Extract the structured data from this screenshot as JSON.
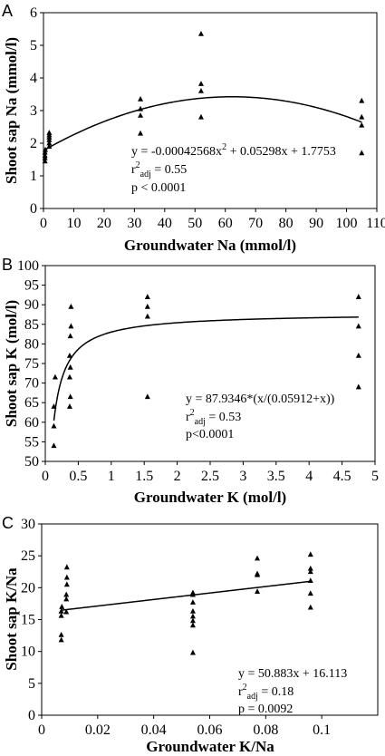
{
  "chart_data": [
    {
      "panel": "A",
      "type": "scatter",
      "xlabel": "Groundwater Na (mmol/l)",
      "ylabel": "Shoot sap Na (mmol/l)",
      "xlim": [
        0,
        110
      ],
      "ylim": [
        0,
        6
      ],
      "xticks": [
        0,
        10,
        20,
        30,
        40,
        50,
        60,
        70,
        80,
        90,
        100,
        110
      ],
      "yticks": [
        0,
        1,
        2,
        3,
        4,
        5,
        6
      ],
      "points": [
        [
          0.5,
          1.45
        ],
        [
          0.5,
          1.55
        ],
        [
          0.5,
          1.62
        ],
        [
          0.5,
          1.72
        ],
        [
          0.6,
          1.8
        ],
        [
          1.9,
          1.9
        ],
        [
          1.9,
          2.0
        ],
        [
          1.9,
          2.1
        ],
        [
          1.9,
          2.18
        ],
        [
          1.9,
          2.25
        ],
        [
          1.9,
          2.32
        ],
        [
          32,
          2.3
        ],
        [
          32,
          2.85
        ],
        [
          32,
          3.05
        ],
        [
          32,
          3.35
        ],
        [
          52,
          2.8
        ],
        [
          52,
          3.6
        ],
        [
          52,
          3.82
        ],
        [
          52,
          5.35
        ],
        [
          105,
          1.7
        ],
        [
          105,
          2.55
        ],
        [
          105,
          2.8
        ],
        [
          105,
          3.3
        ]
      ],
      "fit": {
        "model": "quadratic",
        "a": -0.00042568,
        "b": 0.05298,
        "c": 1.7753,
        "xrange": [
          0.5,
          105
        ]
      },
      "annotation": {
        "equation": "y = -0.00042568x",
        "equation_sup": "2",
        "equation_rest": " + 0.05298x + 1.7753",
        "r2_main": "r",
        "r2_sup": "2",
        "r2_sub": "adj",
        "r2_value": " = 0.55",
        "p": "p < 0.0001"
      }
    },
    {
      "panel": "B",
      "type": "scatter",
      "xlabel": "Groundwater K (mol/l)",
      "ylabel": "Shoot sap K (mol/l)",
      "xlim": [
        0,
        5
      ],
      "ylim": [
        50,
        100
      ],
      "xticks": [
        0,
        0.5,
        1,
        1.5,
        2,
        2.5,
        3,
        3.5,
        4,
        4.5,
        5
      ],
      "yticks": [
        50,
        55,
        60,
        65,
        70,
        75,
        80,
        85,
        90,
        95,
        100
      ],
      "points": [
        [
          0.13,
          54
        ],
        [
          0.13,
          59
        ],
        [
          0.13,
          64
        ],
        [
          0.15,
          71.5
        ],
        [
          0.37,
          64
        ],
        [
          0.38,
          66.5
        ],
        [
          0.37,
          71.5
        ],
        [
          0.38,
          74
        ],
        [
          0.37,
          77
        ],
        [
          0.38,
          82
        ],
        [
          0.39,
          84.5
        ],
        [
          0.39,
          89.5
        ],
        [
          1.55,
          66.5
        ],
        [
          1.55,
          87
        ],
        [
          1.55,
          89.5
        ],
        [
          1.55,
          92
        ],
        [
          4.75,
          69
        ],
        [
          4.75,
          77
        ],
        [
          4.75,
          84.5
        ],
        [
          4.75,
          92
        ]
      ],
      "fit": {
        "model": "michaelis-menten",
        "vmax": 87.9346,
        "k": 0.05912,
        "xrange": [
          0.13,
          4.75
        ]
      },
      "annotation": {
        "equation": "y = 87.9346*(x/(0.05912+x))",
        "r2_main": "r",
        "r2_sup": "2",
        "r2_sub": "adj",
        "r2_value": " = 0.53",
        "p": "p<0.0001"
      }
    },
    {
      "panel": "C",
      "type": "scatter",
      "xlabel": "Groundwater K/Na",
      "ylabel": "Shoot sap K/Na",
      "xlim": [
        0,
        0.12
      ],
      "ylim": [
        0,
        30
      ],
      "xticks": [
        0,
        0.02,
        0.04,
        0.06,
        0.08,
        0.1
      ],
      "xtick_labels": [
        "0",
        "0.02",
        "0.04",
        "0.06",
        "0.08",
        "0.1"
      ],
      "yticks": [
        0,
        5,
        10,
        15,
        20,
        25,
        30
      ],
      "points": [
        [
          0.007,
          11.8
        ],
        [
          0.007,
          12.6
        ],
        [
          0.007,
          15.6
        ],
        [
          0.007,
          16.3
        ],
        [
          0.0072,
          17
        ],
        [
          0.0088,
          16.2
        ],
        [
          0.0088,
          18.2
        ],
        [
          0.0088,
          18.9
        ],
        [
          0.009,
          20.5
        ],
        [
          0.009,
          21.6
        ],
        [
          0.009,
          23.2
        ],
        [
          0.054,
          9.8
        ],
        [
          0.054,
          14.1
        ],
        [
          0.054,
          14.8
        ],
        [
          0.054,
          15.5
        ],
        [
          0.054,
          16.3
        ],
        [
          0.054,
          17.7
        ],
        [
          0.054,
          18.9
        ],
        [
          0.054,
          19.2
        ],
        [
          0.077,
          19.4
        ],
        [
          0.077,
          22
        ],
        [
          0.077,
          22.2
        ],
        [
          0.077,
          24.6
        ],
        [
          0.096,
          16.9
        ],
        [
          0.096,
          19.1
        ],
        [
          0.096,
          21.1
        ],
        [
          0.096,
          22.5
        ],
        [
          0.096,
          23
        ],
        [
          0.096,
          25.2
        ]
      ],
      "fit": {
        "model": "linear",
        "slope": 50.883,
        "intercept": 16.113,
        "xrange": [
          0.007,
          0.096
        ]
      },
      "annotation": {
        "equation": "y = 50.883x + 16.113",
        "r2_main": "r",
        "r2_sup": "2",
        "r2_sub": "adj",
        "r2_value": " = 0.18",
        "p": "p = 0.0092"
      }
    }
  ]
}
